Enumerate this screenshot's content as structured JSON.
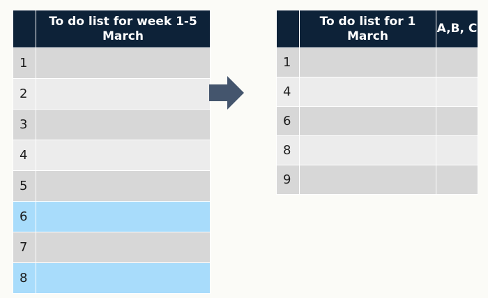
{
  "left_table": {
    "header": "To do list for week 1-5 March",
    "rows": [
      {
        "num": "1",
        "style": "dark"
      },
      {
        "num": "2",
        "style": "light"
      },
      {
        "num": "3",
        "style": "dark"
      },
      {
        "num": "4",
        "style": "light"
      },
      {
        "num": "5",
        "style": "dark"
      },
      {
        "num": "6",
        "style": "blue"
      },
      {
        "num": "7",
        "style": "dark"
      },
      {
        "num": "8",
        "style": "blue"
      }
    ]
  },
  "right_table": {
    "header": "To do list for 1 March",
    "header_priority": "A,B, C",
    "rows": [
      {
        "num": "1",
        "style": "dark"
      },
      {
        "num": "4",
        "style": "light"
      },
      {
        "num": "6",
        "style": "dark"
      },
      {
        "num": "8",
        "style": "light"
      },
      {
        "num": "9",
        "style": "dark"
      }
    ]
  },
  "arrow": {
    "icon": "arrow-right-icon",
    "color": "#44556d"
  },
  "colors": {
    "header_bg": "#0d2238",
    "row_dark": "#d7d7d7",
    "row_light": "#ececec",
    "row_highlight": "#a8dcfb"
  }
}
